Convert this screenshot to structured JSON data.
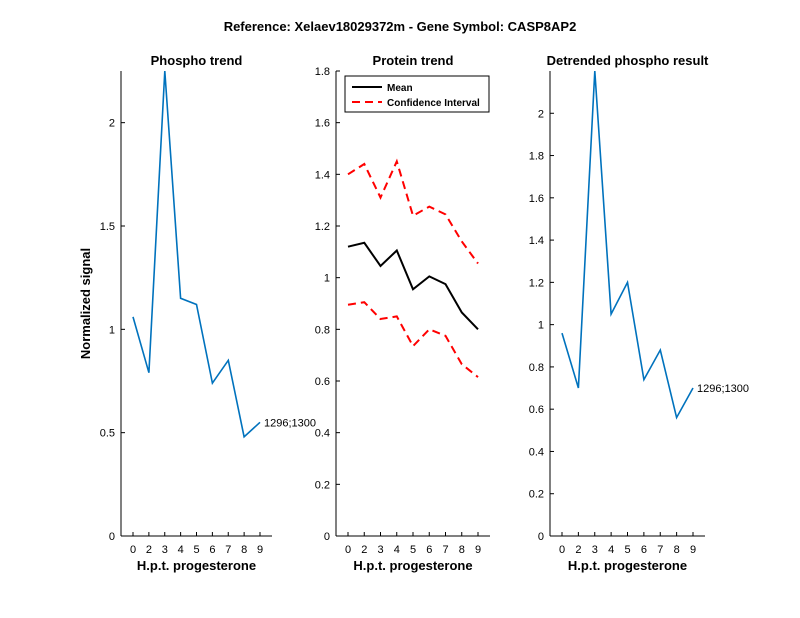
{
  "figure": {
    "suptitle": "Reference:  Xelaev18029372m - Gene Symbol:  CASP8AP2"
  },
  "colors": {
    "blue": "#0072BD",
    "black": "#000000",
    "red": "#FF0000"
  },
  "chart_data": [
    {
      "id": "phospho",
      "type": "line",
      "title": "Phospho trend",
      "xlabel": "H.p.t. progesterone",
      "ylabel": "Normalized signal",
      "categories": [
        "0",
        "2",
        "3",
        "4",
        "5",
        "6",
        "7",
        "8",
        "9"
      ],
      "ylim": [
        0,
        2.25
      ],
      "yticks": [
        0,
        0.5,
        1,
        1.5,
        2
      ],
      "ytick_labels": [
        "0",
        "0.5",
        "1",
        "1.5",
        "2"
      ],
      "series": [
        {
          "name": "phospho",
          "color": "#0072BD",
          "style": "solid",
          "values": [
            1.06,
            0.79,
            2.25,
            1.15,
            1.12,
            0.74,
            0.85,
            0.48,
            0.55
          ]
        }
      ],
      "annotation": {
        "text": "1296;1300",
        "at_index": 8
      }
    },
    {
      "id": "protein",
      "type": "line",
      "title": "Protein trend",
      "xlabel": "H.p.t. progesterone",
      "ylabel": "",
      "categories": [
        "0",
        "2",
        "3",
        "4",
        "5",
        "6",
        "7",
        "8",
        "9"
      ],
      "ylim": [
        0,
        1.8
      ],
      "yticks": [
        0,
        0.2,
        0.4,
        0.6,
        0.8,
        1,
        1.2,
        1.4,
        1.6,
        1.8
      ],
      "ytick_labels": [
        "0",
        "0.2",
        "0.4",
        "0.6",
        "0.8",
        "1",
        "1.2",
        "1.4",
        "1.6",
        "1.8"
      ],
      "legend_position": "top-left",
      "series": [
        {
          "name": "Mean",
          "color": "#000000",
          "style": "solid",
          "in_legend": true,
          "values": [
            1.12,
            1.135,
            1.045,
            1.105,
            0.955,
            1.005,
            0.975,
            0.865,
            0.8
          ]
        },
        {
          "name": "Confidence Interval",
          "color": "#FF0000",
          "style": "dashed",
          "in_legend": true,
          "values": [
            1.4,
            1.44,
            1.31,
            1.45,
            1.24,
            1.275,
            1.245,
            1.14,
            1.055
          ]
        },
        {
          "name": "Confidence Interval lower",
          "color": "#FF0000",
          "style": "dashed",
          "in_legend": false,
          "values": [
            0.895,
            0.905,
            0.84,
            0.85,
            0.735,
            0.8,
            0.775,
            0.665,
            0.615
          ]
        }
      ]
    },
    {
      "id": "detrended",
      "type": "line",
      "title": "Detrended phospho result",
      "xlabel": "H.p.t. progesterone",
      "ylabel": "",
      "categories": [
        "0",
        "2",
        "3",
        "4",
        "5",
        "6",
        "7",
        "8",
        "9"
      ],
      "ylim": [
        0,
        2.2
      ],
      "yticks": [
        0,
        0.2,
        0.4,
        0.6,
        0.8,
        1,
        1.2,
        1.4,
        1.6,
        1.8,
        2
      ],
      "ytick_labels": [
        "0",
        "0.2",
        "0.4",
        "0.6",
        "0.8",
        "1",
        "1.2",
        "1.4",
        "1.6",
        "1.8",
        "2"
      ],
      "series": [
        {
          "name": "detrended",
          "color": "#0072BD",
          "style": "solid",
          "values": [
            0.96,
            0.7,
            2.2,
            1.05,
            1.2,
            0.74,
            0.88,
            0.56,
            0.7
          ]
        }
      ],
      "annotation": {
        "text": "1296;1300",
        "at_index": 8
      }
    }
  ]
}
